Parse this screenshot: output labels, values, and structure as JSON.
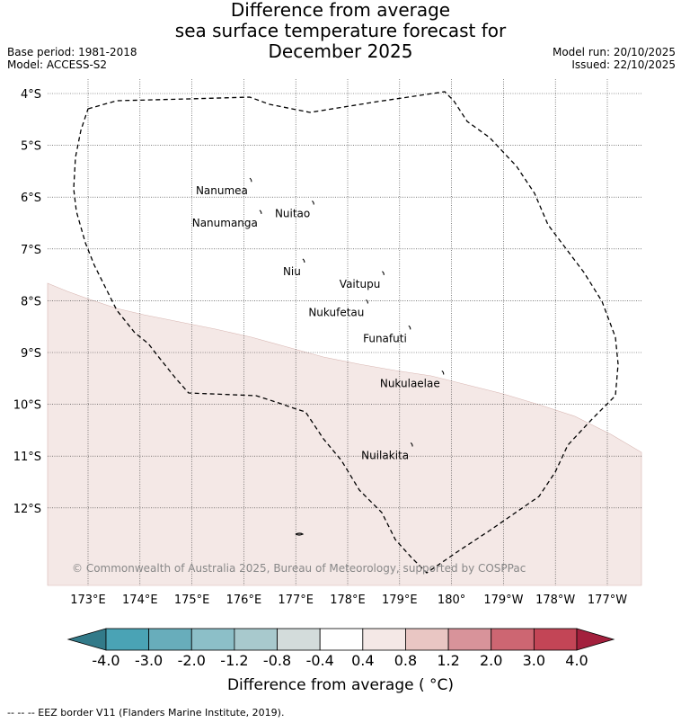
{
  "title": {
    "line1": "Difference from average",
    "line2": "sea surface temperature forecast for",
    "line3": "December 2025"
  },
  "meta": {
    "base_period": "Base period: 1981-2018",
    "model": "Model: ACCESS-S2",
    "model_run": "Model run: 20/10/2025",
    "issued": "Issued: 22/10/2025"
  },
  "map": {
    "lon_ticks": [
      {
        "lon": 173,
        "label": "173°E"
      },
      {
        "lon": 174,
        "label": "174°E"
      },
      {
        "lon": 175,
        "label": "175°E"
      },
      {
        "lon": 176,
        "label": "176°E"
      },
      {
        "lon": 177,
        "label": "177°E"
      },
      {
        "lon": 178,
        "label": "178°E"
      },
      {
        "lon": 179,
        "label": "179°E"
      },
      {
        "lon": 180,
        "label": "180°"
      },
      {
        "lon": 181,
        "label": "179°W"
      },
      {
        "lon": 182,
        "label": "178°W"
      },
      {
        "lon": 183,
        "label": "177°W"
      }
    ],
    "lat_ticks": [
      {
        "lat": -4,
        "label": "4°S"
      },
      {
        "lat": -5,
        "label": "5°S"
      },
      {
        "lat": -6,
        "label": "6°S"
      },
      {
        "lat": -7,
        "label": "7°S"
      },
      {
        "lat": -8,
        "label": "8°S"
      },
      {
        "lat": -9,
        "label": "9°S"
      },
      {
        "lat": -10,
        "label": "10°S"
      },
      {
        "lat": -11,
        "label": "11°S"
      },
      {
        "lat": -12,
        "label": "12°S"
      }
    ],
    "islands": [
      {
        "name": "Nanumea",
        "lon": 176.13,
        "lat": -5.67
      },
      {
        "name": "Nuitao",
        "lon": 177.33,
        "lat": -6.11
      },
      {
        "name": "Nanumanga",
        "lon": 176.32,
        "lat": -6.29
      },
      {
        "name": "Niu",
        "lon": 177.15,
        "lat": -7.23
      },
      {
        "name": "Vaitupu",
        "lon": 178.68,
        "lat": -7.47
      },
      {
        "name": "Nukufetau",
        "lon": 178.37,
        "lat": -8.02
      },
      {
        "name": "Funafuti",
        "lon": 179.19,
        "lat": -8.52
      },
      {
        "name": "Nukulaelae",
        "lon": 179.83,
        "lat": -9.39
      },
      {
        "name": "Nuilakita",
        "lon": 179.23,
        "lat": -10.78
      }
    ],
    "anomaly_band": {
      "range_c": "0.4 to 0.8",
      "color": "#f4e8e6"
    },
    "copyright": "© Commonwealth of Australia 2025, Bureau of Meteorology, supported by COSPPac"
  },
  "colorbar": {
    "colors": [
      "#327a89",
      "#4aa3b5",
      "#68adbb",
      "#8cbfc8",
      "#a8c9cd",
      "#d3dcdb",
      "#ffffff",
      "#f4e8e6",
      "#e9c6c3",
      "#d8939a",
      "#cd6672",
      "#c34556",
      "#a3203d"
    ],
    "labels": [
      "-4.0",
      "-3.0",
      "-2.0",
      "-1.2",
      "-0.8",
      "-0.4",
      "0.4",
      "0.8",
      "1.2",
      "2.0",
      "3.0",
      "4.0"
    ],
    "title": "Difference from average ( °C)"
  },
  "footer": "--  --  -- EEZ border V11 (Flanders Marine Institute, 2019)."
}
